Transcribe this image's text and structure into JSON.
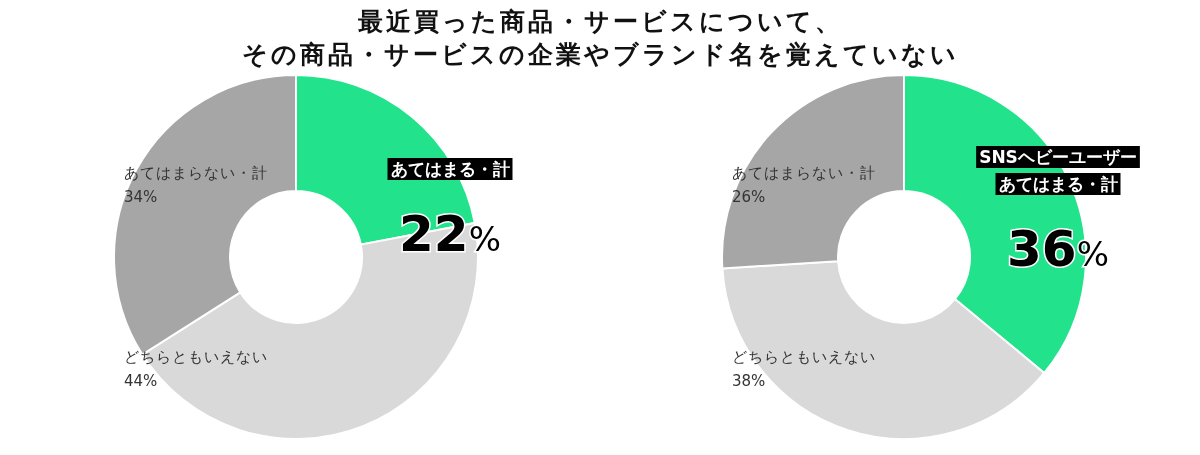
{
  "chart_data": [
    {
      "type": "donut",
      "title": "最近買った商品・サービスについて、その商品・サービスの企業やブランド名を覚えていない",
      "categories": [
        "あてはまる・計",
        "どちらともいえない",
        "あてはまらない・計"
      ],
      "values": [
        22,
        44,
        34
      ],
      "value_labels": [
        "22%",
        "44%",
        "34%"
      ],
      "colors": [
        "#22e38c",
        "#d9d9d9",
        "#a6a6a6"
      ],
      "legend": false
    },
    {
      "type": "donut",
      "subtitle": "SNSヘビーユーザー",
      "categories": [
        "あてはまる・計",
        "どちらともいえない",
        "あてはまらない・計"
      ],
      "values": [
        36,
        38,
        26
      ],
      "value_labels": [
        "36%",
        "38%",
        "26%"
      ],
      "colors": [
        "#22e38c",
        "#d9d9d9",
        "#a6a6a6"
      ],
      "legend": false
    }
  ]
}
